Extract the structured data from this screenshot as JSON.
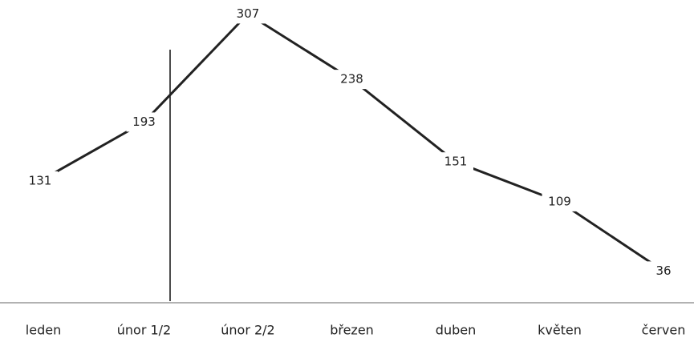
{
  "chart_data": {
    "type": "line",
    "categories": [
      "leden",
      "únor 1/2",
      "únor 2/2",
      "březen",
      "duben",
      "květen",
      "červen"
    ],
    "values": [
      131,
      193,
      307,
      238,
      151,
      109,
      36
    ],
    "color": "#222222",
    "ylim": [
      0,
      320
    ]
  }
}
